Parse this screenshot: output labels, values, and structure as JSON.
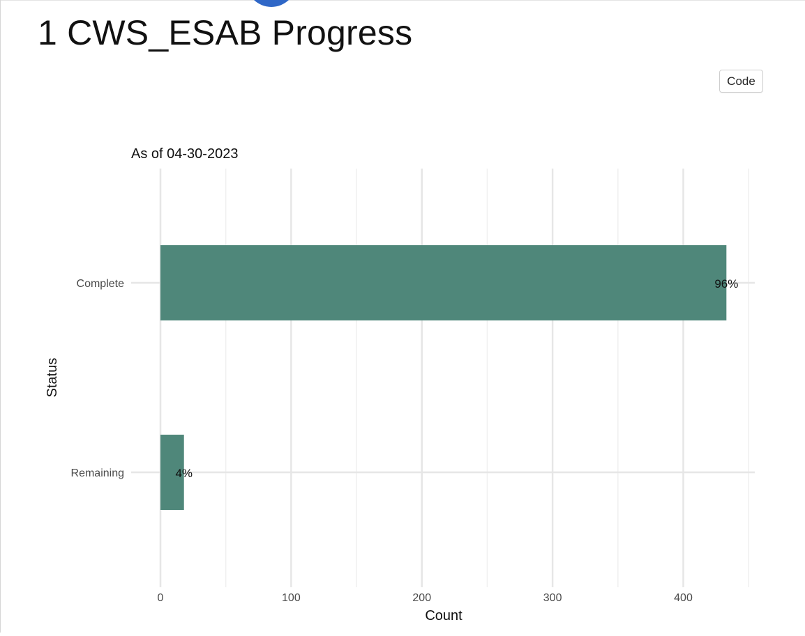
{
  "page": {
    "title": "1 CWS_ESAB Progress",
    "code_button_label": "Code",
    "accent_color": "#2f67c7"
  },
  "chart_data": {
    "type": "bar",
    "orientation": "horizontal",
    "subtitle": "As of 04-30-2023",
    "xlabel": "Count",
    "ylabel": "Status",
    "categories": [
      "Complete",
      "Remaining"
    ],
    "values": [
      433,
      18
    ],
    "data_labels": [
      "96%",
      "4%"
    ],
    "xlim": [
      0,
      455
    ],
    "x_ticks": [
      0,
      100,
      200,
      300,
      400
    ],
    "x_tick_labels": [
      "0",
      "100",
      "200",
      "300",
      "400"
    ],
    "grid": true,
    "bar_color": "#4f877a"
  }
}
